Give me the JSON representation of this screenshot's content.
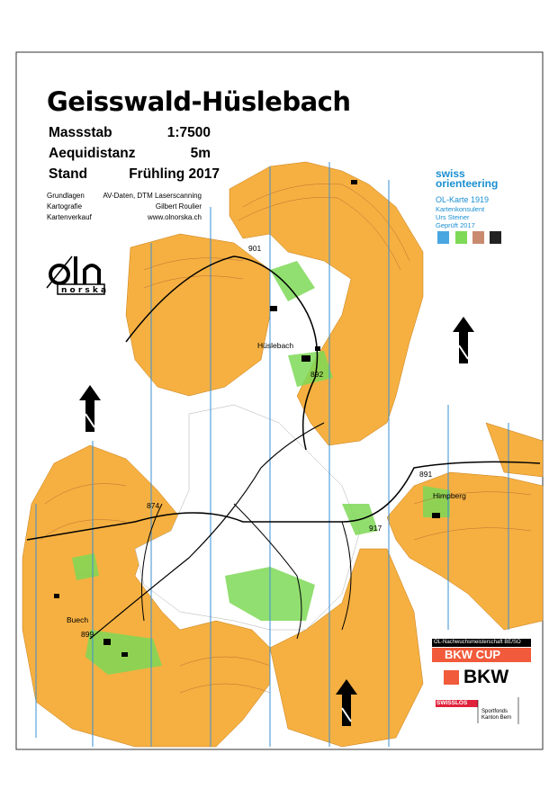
{
  "map": {
    "title": "Geisswald-Hüslebach",
    "info": [
      {
        "label": "Massstab",
        "value": "1:7500"
      },
      {
        "label": "Aequidistanz",
        "value": "5m"
      },
      {
        "label": "Stand",
        "value": "Frühling 2017"
      }
    ],
    "credits": [
      {
        "label": "Grundlagen",
        "value": "AV-Daten, DTM Laserscanning"
      },
      {
        "label": "Kartografie",
        "value": "Gilbert Roulier"
      },
      {
        "label": "Kartenverkauf",
        "value": "www.olnorska.ch"
      }
    ],
    "place_labels": {
      "p901": "901",
      "huslebach": "Hüslebach",
      "p892": "892",
      "p891": "891",
      "himpberg": "Himpberg",
      "p917": "917",
      "p874": "874",
      "buech": "Buech",
      "p899": "899"
    },
    "colors": {
      "open_land": "#f5b041",
      "forest_green": "#7ed957",
      "contour": "#a0522d",
      "north_lines": "#3a8fd6",
      "track": "#000000"
    }
  },
  "logos": {
    "oln": "oln norska",
    "swiss_orienteering": {
      "brand": "swiss orienteering",
      "line1": "OL-Karte  1919",
      "line2": "Kartenkonsulent",
      "line3": "Urs Steiner",
      "line4": "Geprüft 2017"
    },
    "sponsor_header": "OL-Nachwuchsmeisterschaft BE/SO",
    "bkw_cup": "BKW CUP",
    "bkw": "BKW",
    "swisslos": "SWISSLOS",
    "sportfonds": "Sportfonds Kanton Bern"
  }
}
